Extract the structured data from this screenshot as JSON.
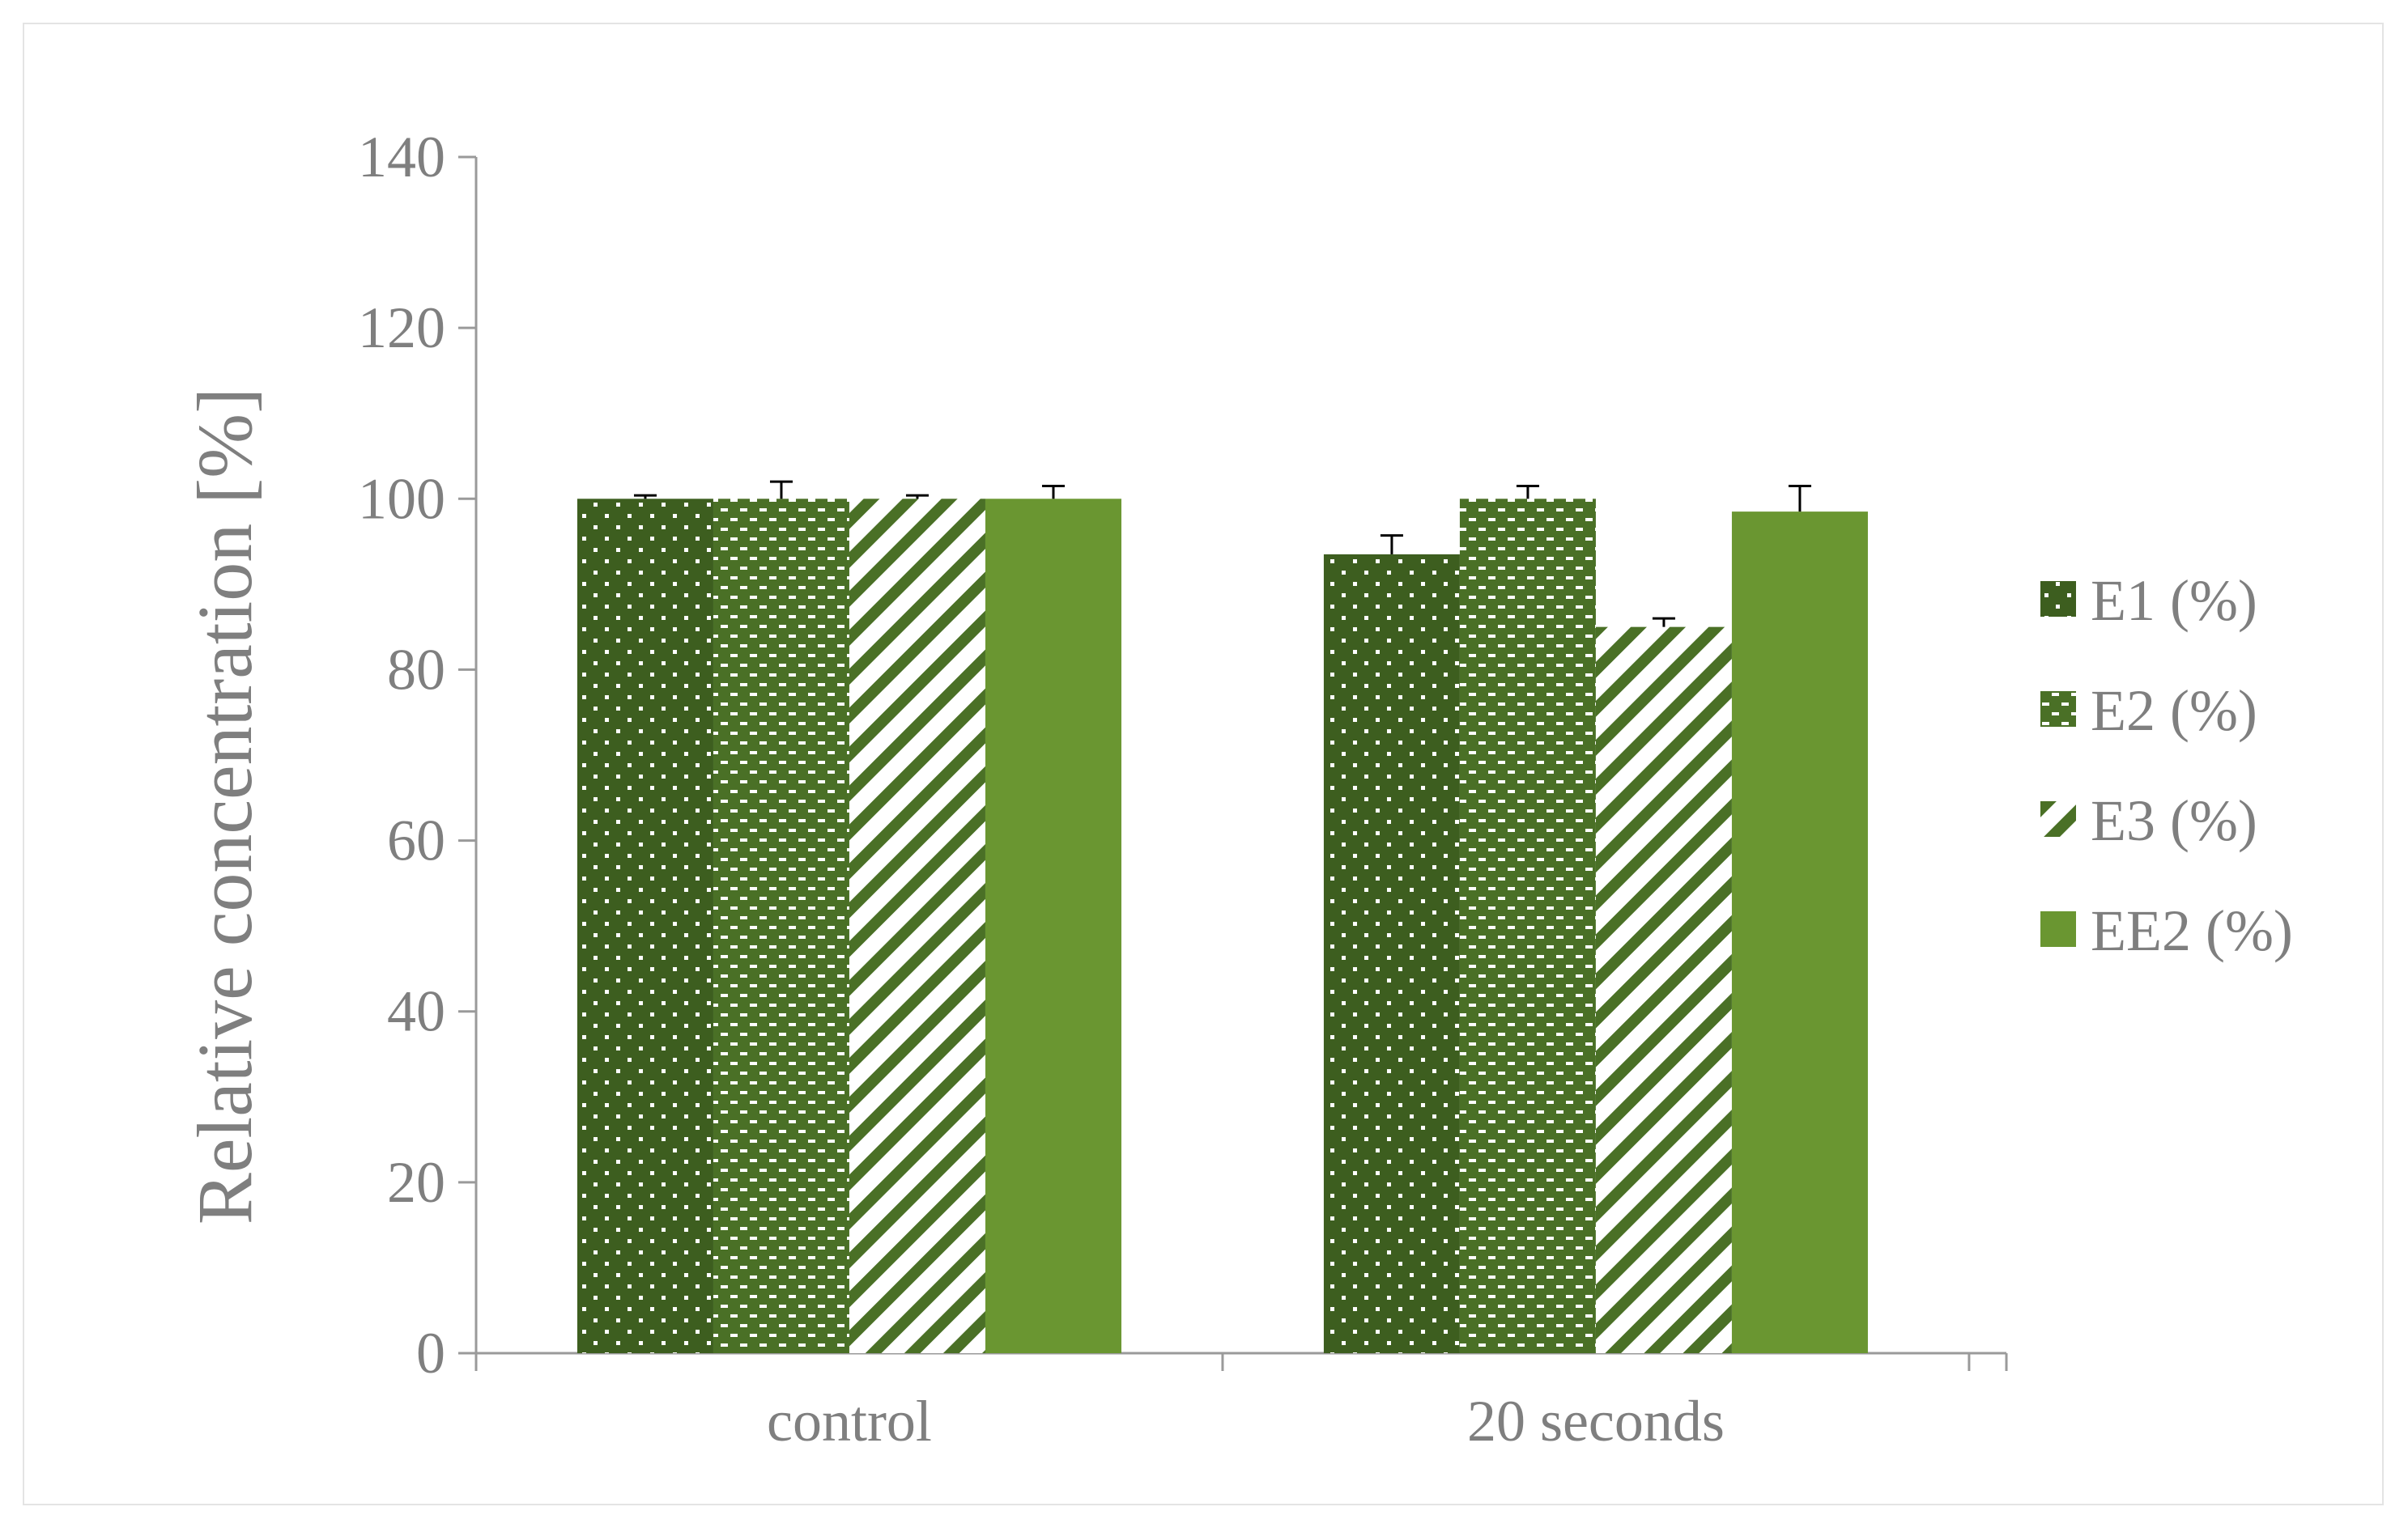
{
  "chart_data": {
    "type": "bar",
    "title": "",
    "xlabel": "",
    "ylabel": "Relative concentration [%]",
    "ylim": [
      0,
      140
    ],
    "yticks": [
      0,
      20,
      40,
      60,
      80,
      100,
      120,
      140
    ],
    "grid": false,
    "legend_position": "right",
    "categories": [
      "control",
      "20 seconds"
    ],
    "series": [
      {
        "name": "E1 (%)",
        "values": [
          100,
          93.5
        ],
        "errors": [
          0.4,
          2.2
        ],
        "color": "#3d5e1f",
        "pattern": "dots"
      },
      {
        "name": "E2 (%)",
        "values": [
          100,
          100
        ],
        "errors": [
          2.0,
          1.5
        ],
        "color": "#4a7026",
        "pattern": "dashes"
      },
      {
        "name": "E3 (%)",
        "values": [
          100,
          85
        ],
        "errors": [
          0.4,
          1.0
        ],
        "color": "#4a7026",
        "pattern": "diagonal-stripes"
      },
      {
        "name": "EE2 (%)",
        "values": [
          100,
          98.5
        ],
        "errors": [
          1.5,
          3.0
        ],
        "color": "#6a9631",
        "pattern": "solid"
      }
    ]
  }
}
